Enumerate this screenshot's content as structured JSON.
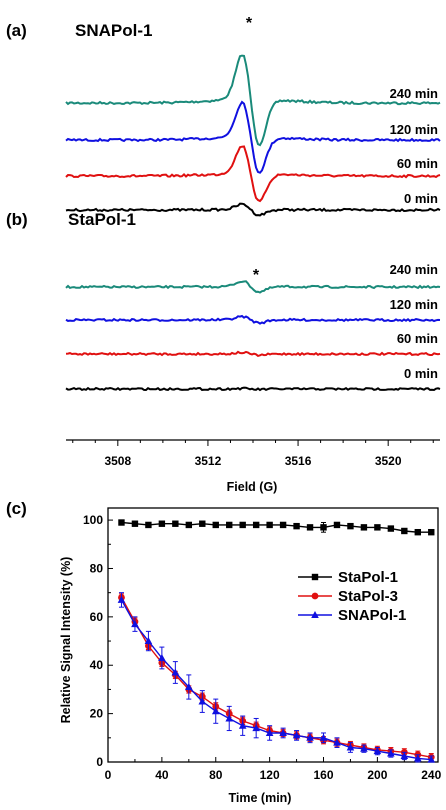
{
  "panels": {
    "a": {
      "label": "(a)",
      "title": "SNAPol-1"
    },
    "b": {
      "label": "(b)",
      "title": "StaPol-1"
    },
    "c": {
      "label": "(c)"
    }
  },
  "star": "*",
  "chart_data": [
    {
      "type": "line",
      "panel": "(a)",
      "title": "SNAPol-1",
      "xlabel": "Field (G)",
      "xlim": [
        3505.7,
        3522.3
      ],
      "traces": [
        {
          "label": "240 min",
          "color": "#1a8a7a",
          "peak_amplitude": 1.0
        },
        {
          "label": "120 min",
          "color": "#1010e0",
          "peak_amplitude": 0.78
        },
        {
          "label": "60 min",
          "color": "#e01010",
          "peak_amplitude": 0.62
        },
        {
          "label": "0 min",
          "color": "#000000",
          "peak_amplitude": 0.12
        }
      ],
      "peak_center": 13.9,
      "marker": "*"
    },
    {
      "type": "line",
      "panel": "(b)",
      "title": "StaPol-1",
      "xlabel": "Field (G)",
      "xticks": [
        3508,
        3512,
        3516,
        3520
      ],
      "xlim": [
        3505.7,
        3522.3
      ],
      "traces": [
        {
          "label": "240 min",
          "color": "#1a8a7a",
          "peak_amplitude": 0.12
        },
        {
          "label": "120 min",
          "color": "#1010e0",
          "peak_amplitude": 0.07
        },
        {
          "label": "60 min",
          "color": "#e01010",
          "peak_amplitude": 0.03
        },
        {
          "label": "0 min",
          "color": "#000000",
          "peak_amplitude": 0.01
        }
      ],
      "marker": "*"
    },
    {
      "type": "line",
      "panel": "(c)",
      "xlabel": "Time (min)",
      "ylabel": "Relative Signal Intensity (%)",
      "xlim": [
        0,
        245
      ],
      "ylim": [
        0,
        105
      ],
      "xticks": [
        0,
        40,
        80,
        120,
        160,
        200,
        240
      ],
      "yticks": [
        0,
        20,
        40,
        60,
        80,
        100
      ],
      "x": [
        10,
        20,
        30,
        40,
        50,
        60,
        70,
        80,
        90,
        100,
        110,
        120,
        130,
        140,
        150,
        160,
        170,
        180,
        190,
        200,
        210,
        220,
        230,
        240
      ],
      "legend_position": "middle-right",
      "series": [
        {
          "name": "StaPol-1",
          "color": "#000000",
          "marker": "square",
          "values": [
            99,
            98.5,
            98,
            98.5,
            98.5,
            98,
            98.5,
            98,
            98,
            98,
            98,
            98,
            98,
            97.5,
            97,
            97,
            98,
            97.5,
            97,
            97,
            96.5,
            95.5,
            95,
            95
          ],
          "errors": [
            0.6,
            0.6,
            0.6,
            0.6,
            0.6,
            0.6,
            0.6,
            0.6,
            0.6,
            0.6,
            0.6,
            0.6,
            0.6,
            0.8,
            0.8,
            2.0,
            0.8,
            0.8,
            0.8,
            0.8,
            0.8,
            0.8,
            0.8,
            0.8
          ]
        },
        {
          "name": "StaPol-3",
          "color": "#e01010",
          "marker": "circle",
          "values": [
            68,
            58,
            48,
            41,
            36,
            30,
            27,
            23,
            20,
            17,
            15,
            13,
            12,
            11,
            10,
            9,
            8,
            7,
            6,
            5,
            4.5,
            4,
            3,
            2
          ],
          "errors": [
            1.5,
            1.5,
            1.5,
            1.5,
            1.5,
            1.5,
            1.5,
            1.5,
            1.5,
            1.5,
            1.5,
            1.5,
            1.5,
            1.5,
            1.5,
            1.5,
            1.5,
            1.5,
            1.5,
            1.5,
            1.5,
            1.5,
            1.5,
            1.5
          ]
        },
        {
          "name": "SNAPol-1",
          "color": "#1010e0",
          "marker": "triangle",
          "values": [
            67,
            57,
            50,
            43,
            37,
            31,
            25,
            21,
            18,
            15,
            14,
            12,
            12,
            11,
            10,
            10,
            8,
            6,
            5.5,
            4.5,
            3.5,
            2.5,
            1.5,
            1
          ],
          "errors": [
            3,
            3,
            4,
            4.5,
            4.5,
            5,
            4.5,
            5,
            5,
            4,
            4,
            3,
            2,
            2,
            2,
            2,
            2,
            2,
            1.5,
            1.5,
            1.5,
            1.5,
            1.5,
            1.5
          ]
        }
      ]
    }
  ]
}
